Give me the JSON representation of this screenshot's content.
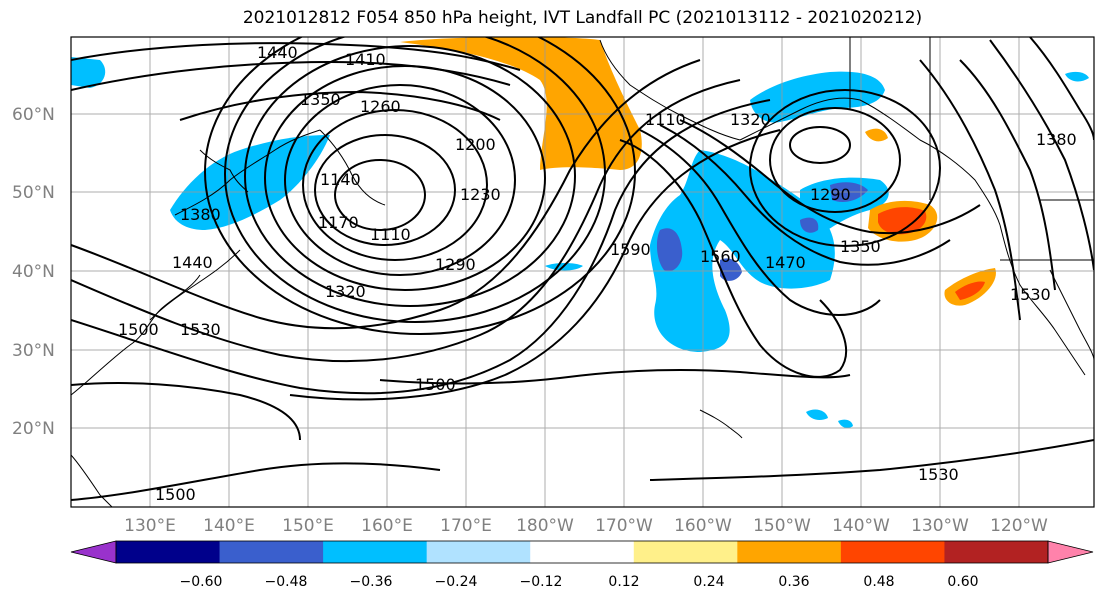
{
  "title": "2021012812 F054 850 hPa height, IVT Landfall PC (2021013112 - 2021020212)",
  "lat_labels": [
    "60°N",
    "50°N",
    "40°N",
    "30°N",
    "20°N"
  ],
  "lon_labels": [
    "130°E",
    "140°E",
    "150°E",
    "160°E",
    "170°E",
    "180°W",
    "170°W",
    "160°W",
    "150°W",
    "140°W",
    "130°W",
    "120°W"
  ],
  "contour_labels": [
    "1440",
    "1410",
    "1350",
    "1260",
    "1200",
    "1230",
    "1290",
    "1320",
    "1110",
    "1140",
    "1170",
    "1380",
    "1440",
    "1530",
    "1500",
    "1590",
    "1560",
    "1470",
    "1350",
    "1290",
    "1320",
    "1110",
    "1380",
    "1530",
    "1500",
    "1530",
    "1500"
  ],
  "colorbar": {
    "ticks": [
      "−0.60",
      "−0.48",
      "−0.36",
      "−0.24",
      "−0.12",
      "0.12",
      "0.24",
      "0.36",
      "0.48",
      "0.60"
    ],
    "colors": [
      "#9932cc",
      "#00008b",
      "#3a5fcd",
      "#00bfff",
      "#b0e2ff",
      "#ffffff",
      "#fff08a",
      "#ffa500",
      "#ff4500",
      "#b22222",
      "#ff82ab"
    ]
  }
}
